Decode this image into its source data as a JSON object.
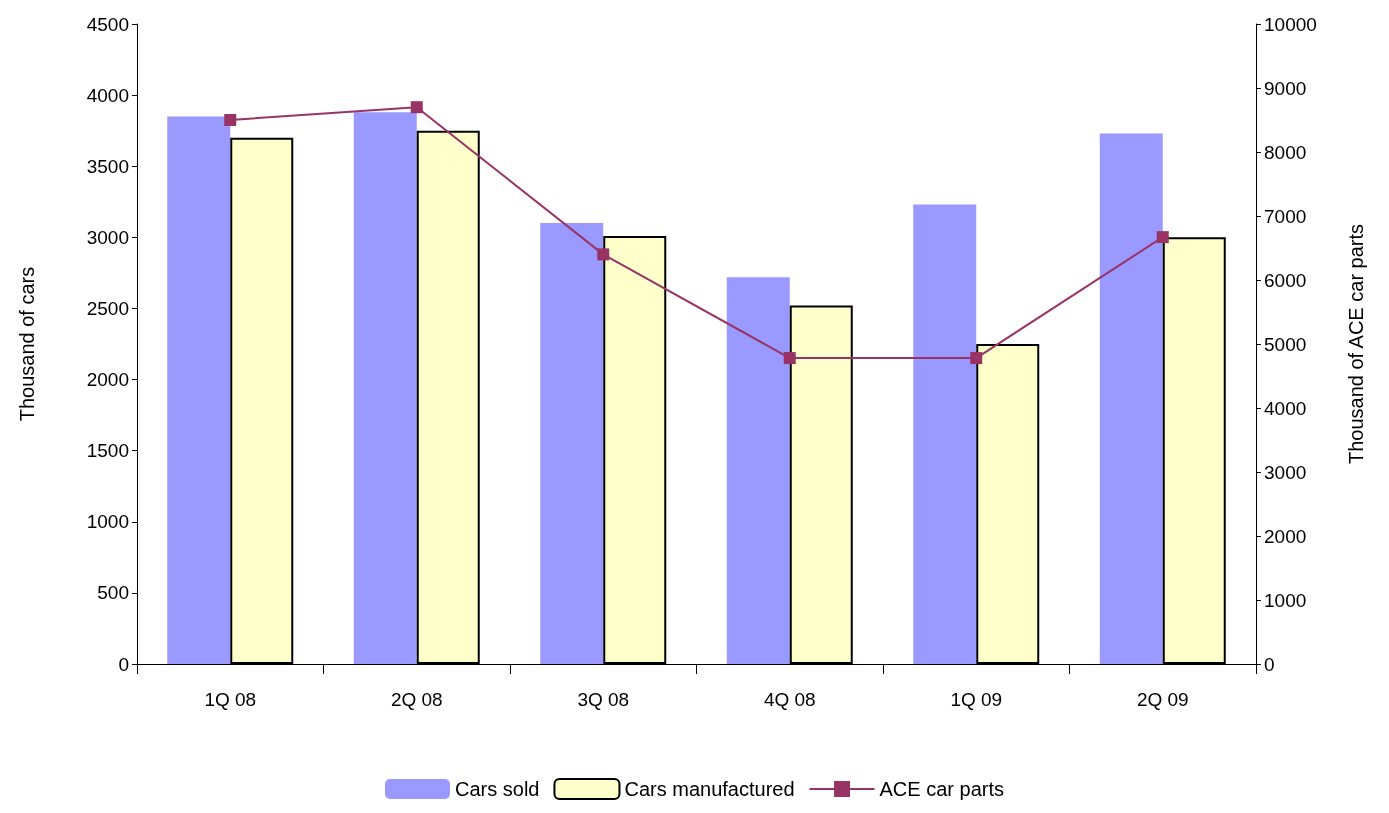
{
  "chart_data": {
    "type": "bar",
    "categories": [
      "1Q 08",
      "2Q 08",
      "3Q 08",
      "4Q 08",
      "1Q 09",
      "2Q 09"
    ],
    "series": [
      {
        "name": "Cars sold",
        "color": "#9999ff",
        "values": [
          3850,
          3880,
          3100,
          2720,
          3230,
          3730
        ]
      },
      {
        "name": "Cars manufactured",
        "color": "#ffffcc",
        "values": [
          3700,
          3750,
          3010,
          2520,
          2250,
          3000
        ]
      },
      {
        "name": "ACE car parts",
        "type": "line",
        "axis": "y2",
        "color": "#993366",
        "values": [
          8500,
          8700,
          6400,
          4780,
          4780,
          6670
        ]
      }
    ],
    "ylabel": "Thousand of cars",
    "y2label": "Thousand of ACE car parts",
    "ylim": [
      0,
      4500
    ],
    "yticks": [
      0,
      500,
      1000,
      1500,
      2000,
      2500,
      3000,
      3500,
      4000,
      4500
    ],
    "y2lim": [
      0,
      10000
    ],
    "y2ticks": [
      0,
      1000,
      2000,
      3000,
      4000,
      5000,
      6000,
      7000,
      8000,
      9000,
      10000
    ],
    "grid": false,
    "legend": "bottom",
    "marker": "square"
  }
}
